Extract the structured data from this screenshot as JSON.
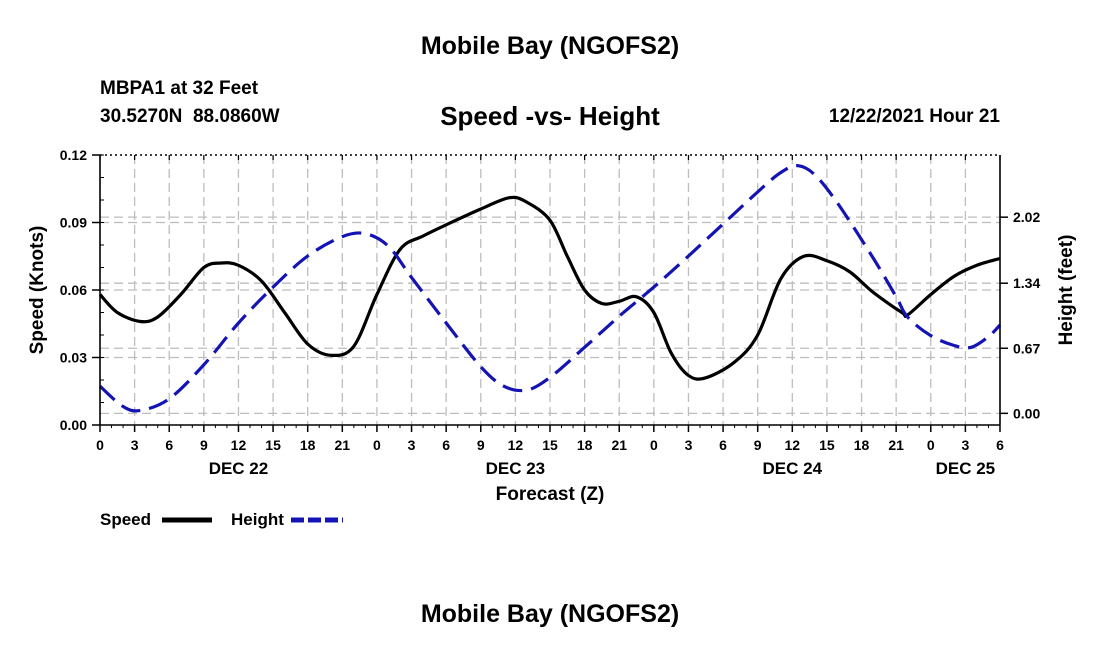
{
  "page_title": "Mobile Bay (NGOFS2)",
  "footer_title": "Mobile Bay (NGOFS2)",
  "station": {
    "name_line": "MBPA1 at 32 Feet",
    "coords_line": "30.5270N  88.0860W"
  },
  "forecast_time": "12/22/2021 Hour 21",
  "chart_data": {
    "type": "line",
    "title": "Speed -vs- Height",
    "xlabel": "Forecast (Z)",
    "ylabel_left": "Speed (Knots)",
    "ylabel_right": "Height (feet)",
    "x_range_hours": [
      0,
      78
    ],
    "ylim_left": [
      0,
      0.12
    ],
    "ylim_right": [
      -0.12,
      2.66
    ],
    "yticks_left": [
      {
        "value": 0.0,
        "label": "0.00"
      },
      {
        "value": 0.03,
        "label": "0.03"
      },
      {
        "value": 0.06,
        "label": "0.06"
      },
      {
        "value": 0.09,
        "label": "0.09"
      },
      {
        "value": 0.12,
        "label": "0.12"
      }
    ],
    "yticks_right": [
      {
        "value": 0.0,
        "label": "0.00"
      },
      {
        "value": 0.67,
        "label": "0.67"
      },
      {
        "value": 1.34,
        "label": "1.34"
      },
      {
        "value": 2.02,
        "label": "2.02"
      }
    ],
    "xticks": [
      {
        "hour": 0,
        "label": "0"
      },
      {
        "hour": 3,
        "label": "3"
      },
      {
        "hour": 6,
        "label": "6"
      },
      {
        "hour": 9,
        "label": "9"
      },
      {
        "hour": 12,
        "label": "12"
      },
      {
        "hour": 15,
        "label": "15"
      },
      {
        "hour": 18,
        "label": "18"
      },
      {
        "hour": 21,
        "label": "21"
      },
      {
        "hour": 24,
        "label": "0"
      },
      {
        "hour": 27,
        "label": "3"
      },
      {
        "hour": 30,
        "label": "6"
      },
      {
        "hour": 33,
        "label": "9"
      },
      {
        "hour": 36,
        "label": "12"
      },
      {
        "hour": 39,
        "label": "15"
      },
      {
        "hour": 42,
        "label": "18"
      },
      {
        "hour": 45,
        "label": "21"
      },
      {
        "hour": 48,
        "label": "0"
      },
      {
        "hour": 51,
        "label": "3"
      },
      {
        "hour": 54,
        "label": "6"
      },
      {
        "hour": 57,
        "label": "9"
      },
      {
        "hour": 60,
        "label": "12"
      },
      {
        "hour": 63,
        "label": "15"
      },
      {
        "hour": 66,
        "label": "18"
      },
      {
        "hour": 69,
        "label": "21"
      },
      {
        "hour": 72,
        "label": "0"
      },
      {
        "hour": 75,
        "label": "3"
      },
      {
        "hour": 78,
        "label": "6"
      }
    ],
    "date_labels": [
      {
        "hour": 12,
        "label": "DEC 22"
      },
      {
        "hour": 36,
        "label": "DEC 23"
      },
      {
        "hour": 60,
        "label": "DEC 24"
      },
      {
        "hour": 75,
        "label": "DEC 25"
      }
    ],
    "series": [
      {
        "name": "Speed",
        "color": "#000000",
        "dash": "solid",
        "axis": "left",
        "points": [
          [
            0,
            0.058
          ],
          [
            1.5,
            0.05
          ],
          [
            3.5,
            0.046
          ],
          [
            5,
            0.048
          ],
          [
            7,
            0.058
          ],
          [
            9,
            0.07
          ],
          [
            10.5,
            0.072
          ],
          [
            12,
            0.071
          ],
          [
            14,
            0.064
          ],
          [
            16,
            0.05
          ],
          [
            18,
            0.036
          ],
          [
            20,
            0.031
          ],
          [
            22,
            0.035
          ],
          [
            24,
            0.058
          ],
          [
            26,
            0.078
          ],
          [
            28,
            0.084
          ],
          [
            30,
            0.089
          ],
          [
            33,
            0.096
          ],
          [
            35.5,
            0.101
          ],
          [
            37,
            0.099
          ],
          [
            39,
            0.091
          ],
          [
            40.5,
            0.075
          ],
          [
            42,
            0.06
          ],
          [
            43.5,
            0.054
          ],
          [
            45,
            0.055
          ],
          [
            46.5,
            0.057
          ],
          [
            48,
            0.05
          ],
          [
            49.5,
            0.032
          ],
          [
            51,
            0.022
          ],
          [
            52.5,
            0.021
          ],
          [
            55,
            0.028
          ],
          [
            57,
            0.04
          ],
          [
            59,
            0.065
          ],
          [
            61,
            0.075
          ],
          [
            63,
            0.073
          ],
          [
            65,
            0.068
          ],
          [
            67,
            0.059
          ],
          [
            69.5,
            0.05
          ],
          [
            70,
            0.049
          ],
          [
            72,
            0.058
          ],
          [
            74,
            0.066
          ],
          [
            76,
            0.071
          ],
          [
            78,
            0.074
          ]
        ]
      },
      {
        "name": "Height",
        "color": "#1414b4",
        "dash": "dashed",
        "axis": "right",
        "points": [
          [
            0,
            0.28
          ],
          [
            2,
            0.07
          ],
          [
            3.5,
            0.03
          ],
          [
            6,
            0.15
          ],
          [
            9,
            0.5
          ],
          [
            12,
            0.93
          ],
          [
            15,
            1.3
          ],
          [
            18,
            1.62
          ],
          [
            21,
            1.82
          ],
          [
            23,
            1.85
          ],
          [
            25,
            1.72
          ],
          [
            27,
            1.4
          ],
          [
            30,
            0.93
          ],
          [
            33,
            0.48
          ],
          [
            35,
            0.28
          ],
          [
            37,
            0.24
          ],
          [
            39,
            0.37
          ],
          [
            42,
            0.68
          ],
          [
            45,
            1.0
          ],
          [
            48,
            1.3
          ],
          [
            51,
            1.62
          ],
          [
            54,
            1.95
          ],
          [
            57,
            2.28
          ],
          [
            59,
            2.48
          ],
          [
            60.5,
            2.55
          ],
          [
            62,
            2.45
          ],
          [
            64,
            2.15
          ],
          [
            67,
            1.6
          ],
          [
            69,
            1.2
          ],
          [
            70,
            0.99
          ],
          [
            72,
            0.8
          ],
          [
            74,
            0.7
          ],
          [
            75.5,
            0.68
          ],
          [
            77,
            0.79
          ],
          [
            78,
            0.91
          ]
        ]
      }
    ],
    "legend": {
      "placement": "bottom-left"
    }
  }
}
